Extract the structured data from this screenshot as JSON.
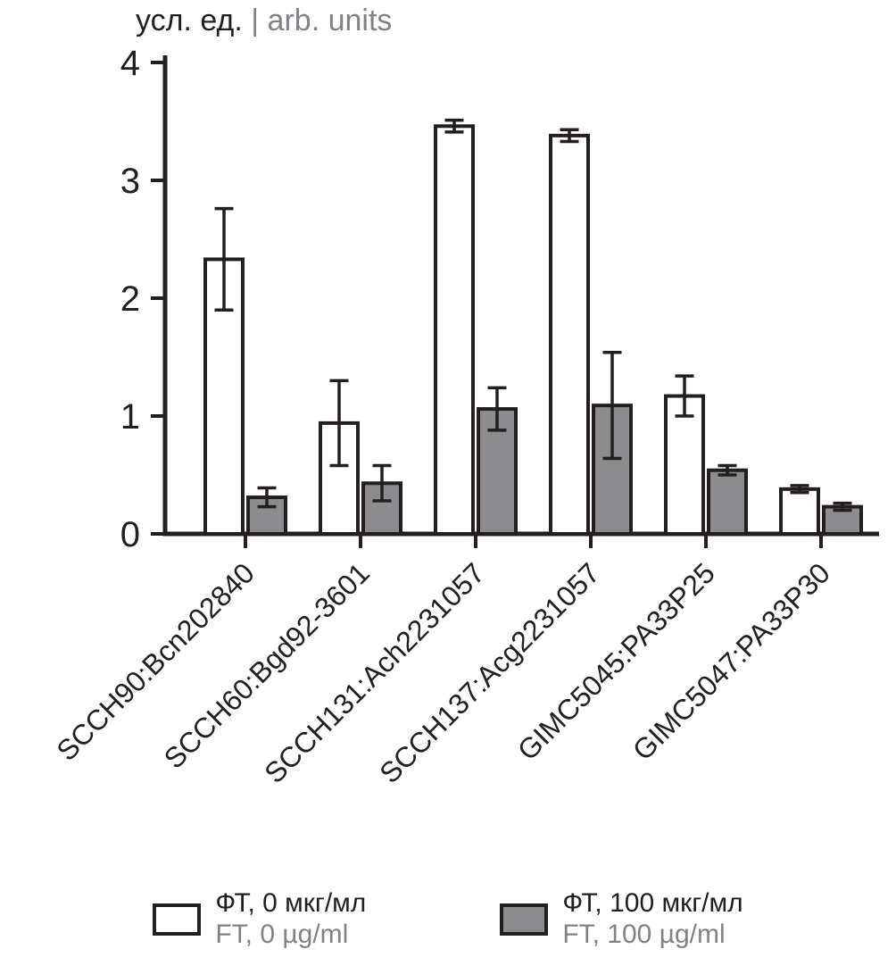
{
  "chart_data": {
    "type": "bar",
    "title": "",
    "ylabel_ru": "усл. ед.",
    "ylabel_sep": "|",
    "ylabel_en": "arb. units",
    "ylim": [
      0,
      4
    ],
    "yticks": [
      0,
      1,
      2,
      3,
      4
    ],
    "grid": false,
    "legend_position": "bottom",
    "categories": [
      "SCCH90:Bcn202840",
      "SCCH60:Bgd92-3601",
      "SCCH131:Ach2231057",
      "SCCH137:Acg2231057",
      "GIMC5045:PA33P25",
      "GIMC5047:PA33P30"
    ],
    "series": [
      {
        "name_ru": "ФТ, 0 мкг/мл",
        "name_en": "FT, 0 µg/ml",
        "fill": "#ffffff",
        "values": [
          2.33,
          0.94,
          3.46,
          3.38,
          1.17,
          0.38
        ],
        "errors": [
          0.43,
          0.36,
          0.05,
          0.05,
          0.17,
          0.03
        ]
      },
      {
        "name_ru": "ФТ, 100 мкг/мл",
        "name_en": "FT, 100 µg/ml",
        "fill": "#8c8c8e",
        "values": [
          0.31,
          0.43,
          1.06,
          1.09,
          0.54,
          0.23
        ],
        "errors": [
          0.08,
          0.15,
          0.18,
          0.45,
          0.04,
          0.03
        ]
      }
    ],
    "colors": {
      "axis": "#231f20",
      "gray_fill": "#8c8c8e",
      "gray_text": "#808285"
    }
  }
}
